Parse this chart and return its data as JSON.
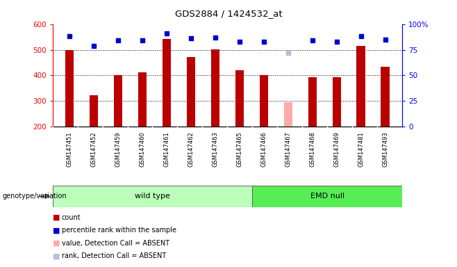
{
  "title": "GDS2884 / 1424532_at",
  "samples": [
    "GSM147451",
    "GSM147452",
    "GSM147459",
    "GSM147460",
    "GSM147461",
    "GSM147462",
    "GSM147463",
    "GSM147465",
    "GSM147466",
    "GSM147467",
    "GSM147468",
    "GSM147469",
    "GSM147481",
    "GSM147493"
  ],
  "counts": [
    500,
    323,
    400,
    413,
    543,
    471,
    502,
    420,
    401,
    296,
    393,
    393,
    514,
    434
  ],
  "percentile_ranks": [
    88,
    79,
    84,
    84,
    91,
    86,
    87,
    83,
    83,
    72,
    84,
    83,
    88,
    85
  ],
  "absent_mask": [
    false,
    false,
    false,
    false,
    false,
    false,
    false,
    false,
    false,
    true,
    false,
    false,
    false,
    false
  ],
  "group_labels": [
    "wild type",
    "EMD null"
  ],
  "wt_count": 8,
  "ylim_left": [
    200,
    600
  ],
  "ylim_right": [
    0,
    100
  ],
  "yticks_left": [
    200,
    300,
    400,
    500,
    600
  ],
  "yticks_right": [
    0,
    25,
    50,
    75,
    100
  ],
  "bar_color_normal": "#bb0000",
  "bar_color_absent": "#ffaaaa",
  "dot_color_normal": "#0000cc",
  "dot_color_absent": "#bbbbdd",
  "group_color_wt": "#bbffbb",
  "group_color_emd": "#55ee55",
  "legend_items": [
    {
      "label": "count",
      "color": "#bb0000"
    },
    {
      "label": "percentile rank within the sample",
      "color": "#0000cc"
    },
    {
      "label": "value, Detection Call = ABSENT",
      "color": "#ffaaaa"
    },
    {
      "label": "rank, Detection Call = ABSENT",
      "color": "#bbbbdd"
    }
  ],
  "genotype_label": "genotype/variation",
  "bar_width": 0.35,
  "background_color": "#ffffff",
  "xlabels_bg_color": "#d0d0d0",
  "cell_border_color": "#aaaaaa"
}
